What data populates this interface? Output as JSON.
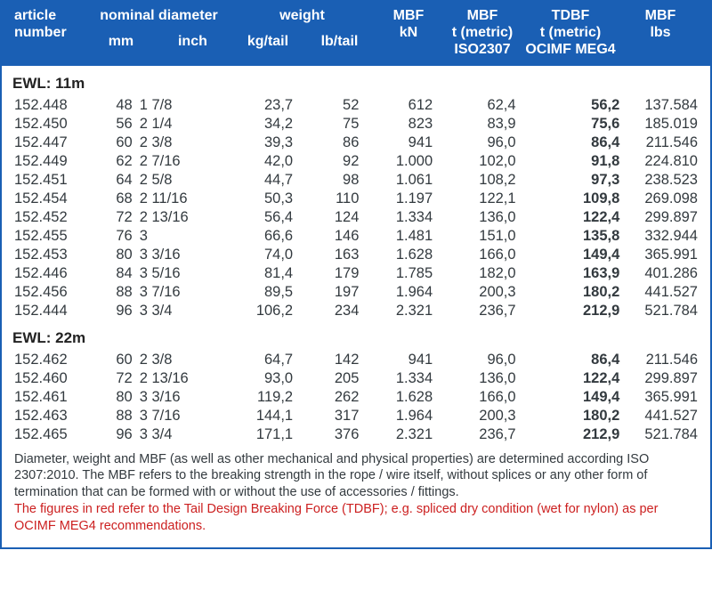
{
  "colors": {
    "header_bg": "#1a5fb4",
    "header_fg": "#ffffff",
    "body_fg": "#333a3f",
    "tdbf": "#cc2020",
    "border": "#1a5fb4",
    "background": "#ffffff"
  },
  "header": {
    "article": {
      "line1": "article",
      "line2": "number"
    },
    "diameter": {
      "group": "nominal diameter",
      "mm": "mm",
      "inch": "inch"
    },
    "weight": {
      "group": "weight",
      "kg": "kg/tail",
      "lb": "lb/tail"
    },
    "mbf_kn": {
      "line1": "MBF",
      "line2": "kN"
    },
    "mbf_iso": {
      "line1": "MBF",
      "line2": "t (metric)",
      "line3": "ISO2307"
    },
    "tdbf": {
      "line1": "TDBF",
      "line2": "t (metric)",
      "line3": "OCIMF MEG4"
    },
    "mbf_lbs": {
      "line1": "MBF",
      "line2": "lbs"
    }
  },
  "sections": [
    {
      "title": "EWL: 11m",
      "rows": [
        {
          "art": "152.448",
          "mm": "48",
          "inch": "1 7/8",
          "kg": "23,7",
          "lb": "52",
          "kn": "612",
          "iso": "62,4",
          "tdbf": "56,2",
          "lbs": "137.584"
        },
        {
          "art": "152.450",
          "mm": "56",
          "inch": "2 1/4",
          "kg": "34,2",
          "lb": "75",
          "kn": "823",
          "iso": "83,9",
          "tdbf": "75,6",
          "lbs": "185.019"
        },
        {
          "art": "152.447",
          "mm": "60",
          "inch": "2 3/8",
          "kg": "39,3",
          "lb": "86",
          "kn": "941",
          "iso": "96,0",
          "tdbf": "86,4",
          "lbs": "211.546"
        },
        {
          "art": "152.449",
          "mm": "62",
          "inch": "2 7/16",
          "kg": "42,0",
          "lb": "92",
          "kn": "1.000",
          "iso": "102,0",
          "tdbf": "91,8",
          "lbs": "224.810"
        },
        {
          "art": "152.451",
          "mm": "64",
          "inch": "2 5/8",
          "kg": "44,7",
          "lb": "98",
          "kn": "1.061",
          "iso": "108,2",
          "tdbf": "97,3",
          "lbs": "238.523"
        },
        {
          "art": "152.454",
          "mm": "68",
          "inch": "2 11/16",
          "kg": "50,3",
          "lb": "110",
          "kn": "1.197",
          "iso": "122,1",
          "tdbf": "109,8",
          "lbs": "269.098"
        },
        {
          "art": "152.452",
          "mm": "72",
          "inch": "2 13/16",
          "kg": "56,4",
          "lb": "124",
          "kn": "1.334",
          "iso": "136,0",
          "tdbf": "122,4",
          "lbs": "299.897"
        },
        {
          "art": "152.455",
          "mm": "76",
          "inch": "3",
          "kg": "66,6",
          "lb": "146",
          "kn": "1.481",
          "iso": "151,0",
          "tdbf": "135,8",
          "lbs": "332.944"
        },
        {
          "art": "152.453",
          "mm": "80",
          "inch": "3 3/16",
          "kg": "74,0",
          "lb": "163",
          "kn": "1.628",
          "iso": "166,0",
          "tdbf": "149,4",
          "lbs": "365.991"
        },
        {
          "art": "152.446",
          "mm": "84",
          "inch": "3 5/16",
          "kg": "81,4",
          "lb": "179",
          "kn": "1.785",
          "iso": "182,0",
          "tdbf": "163,9",
          "lbs": "401.286"
        },
        {
          "art": "152.456",
          "mm": "88",
          "inch": "3 7/16",
          "kg": "89,5",
          "lb": "197",
          "kn": "1.964",
          "iso": "200,3",
          "tdbf": "180,2",
          "lbs": "441.527"
        },
        {
          "art": "152.444",
          "mm": "96",
          "inch": "3 3/4",
          "kg": "106,2",
          "lb": "234",
          "kn": "2.321",
          "iso": "236,7",
          "tdbf": "212,9",
          "lbs": "521.784"
        }
      ]
    },
    {
      "title": "EWL: 22m",
      "rows": [
        {
          "art": "152.462",
          "mm": "60",
          "inch": "2 3/8",
          "kg": "64,7",
          "lb": "142",
          "kn": "941",
          "iso": "96,0",
          "tdbf": "86,4",
          "lbs": "211.546"
        },
        {
          "art": "152.460",
          "mm": "72",
          "inch": "2 13/16",
          "kg": "93,0",
          "lb": "205",
          "kn": "1.334",
          "iso": "136,0",
          "tdbf": "122,4",
          "lbs": "299.897"
        },
        {
          "art": "152.461",
          "mm": "80",
          "inch": "3 3/16",
          "kg": "119,2",
          "lb": "262",
          "kn": "1.628",
          "iso": "166,0",
          "tdbf": "149,4",
          "lbs": "365.991"
        },
        {
          "art": "152.463",
          "mm": "88",
          "inch": "3 7/16",
          "kg": "144,1",
          "lb": "317",
          "kn": "1.964",
          "iso": "200,3",
          "tdbf": "180,2",
          "lbs": "441.527"
        },
        {
          "art": "152.465",
          "mm": "96",
          "inch": "3 3/4",
          "kg": "171,1",
          "lb": "376",
          "kn": "2.321",
          "iso": "236,7",
          "tdbf": "212,9",
          "lbs": "521.784"
        }
      ]
    }
  ],
  "footnote": {
    "black": "Diameter, weight and MBF (as well as other mechanical and physical properties) are determined according ISO 2307:2010. The MBF refers to the breaking strength in the rope / wire itself, without splices or any other form of termination that can be formed with or without the use of accessories / fittings.",
    "red": "The figures in red refer to the Tail Design Breaking Force (TDBF); e.g. spliced dry condition (wet for nylon) as per OCIMF MEG4 recommendations."
  }
}
